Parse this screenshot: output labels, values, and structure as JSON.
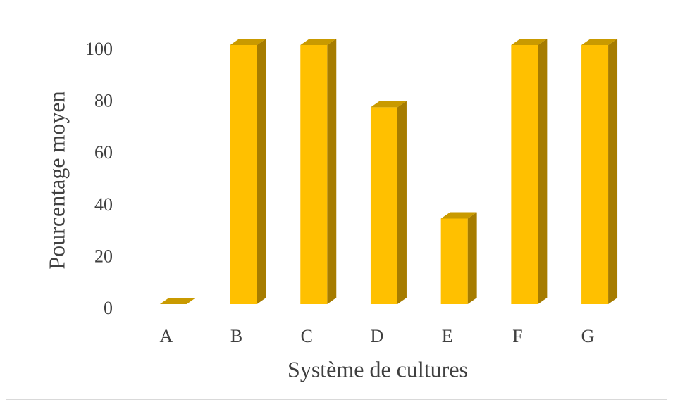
{
  "chart_data": {
    "type": "bar3d",
    "x_label": "Système de cultures",
    "y_label": "Pourcentage moyen",
    "categories": [
      "A",
      "B",
      "C",
      "D",
      "E",
      "F",
      "G"
    ],
    "values": [
      0,
      100,
      100,
      76,
      33,
      100,
      100
    ],
    "color": "#ffc000",
    "ylim": [
      0,
      100
    ],
    "yticks": [
      0,
      20,
      40,
      60,
      80,
      100
    ],
    "grid": false
  }
}
